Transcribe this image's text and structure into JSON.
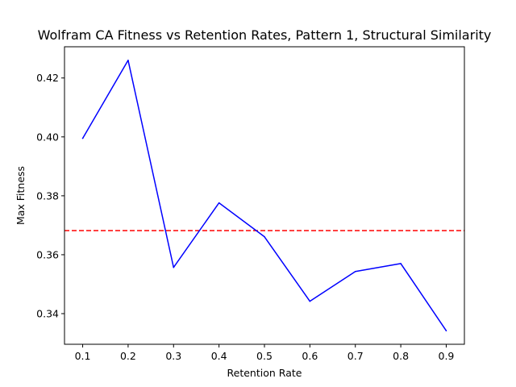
{
  "chart_data": {
    "type": "line",
    "title": "Wolfram CA Fitness vs Retention Rates, Pattern 1, Structural Similarity",
    "xlabel": "Retention Rate",
    "ylabel": "Max Fitness",
    "x_ticks": [
      "0.1",
      "0.2",
      "0.3",
      "0.4",
      "0.5",
      "0.6",
      "0.7",
      "0.8",
      "0.9"
    ],
    "y_ticks": [
      "0.34",
      "0.36",
      "0.38",
      "0.40",
      "0.42"
    ],
    "xlim": [
      0.06,
      0.94
    ],
    "ylim": [
      0.3296,
      0.4306
    ],
    "grid": false,
    "series": [
      {
        "color": "#0000ff",
        "style": "solid",
        "x": [
          0.1,
          0.2,
          0.3,
          0.4,
          0.5,
          0.6,
          0.7,
          0.8,
          0.9
        ],
        "y": [
          0.3995,
          0.426,
          0.3557,
          0.3776,
          0.3661,
          0.3442,
          0.3543,
          0.357,
          0.3342
        ]
      }
    ],
    "reference_lines": [
      {
        "orientation": "horizontal",
        "y": 0.3682,
        "color": "#ff0000",
        "style": "dashed"
      }
    ]
  }
}
